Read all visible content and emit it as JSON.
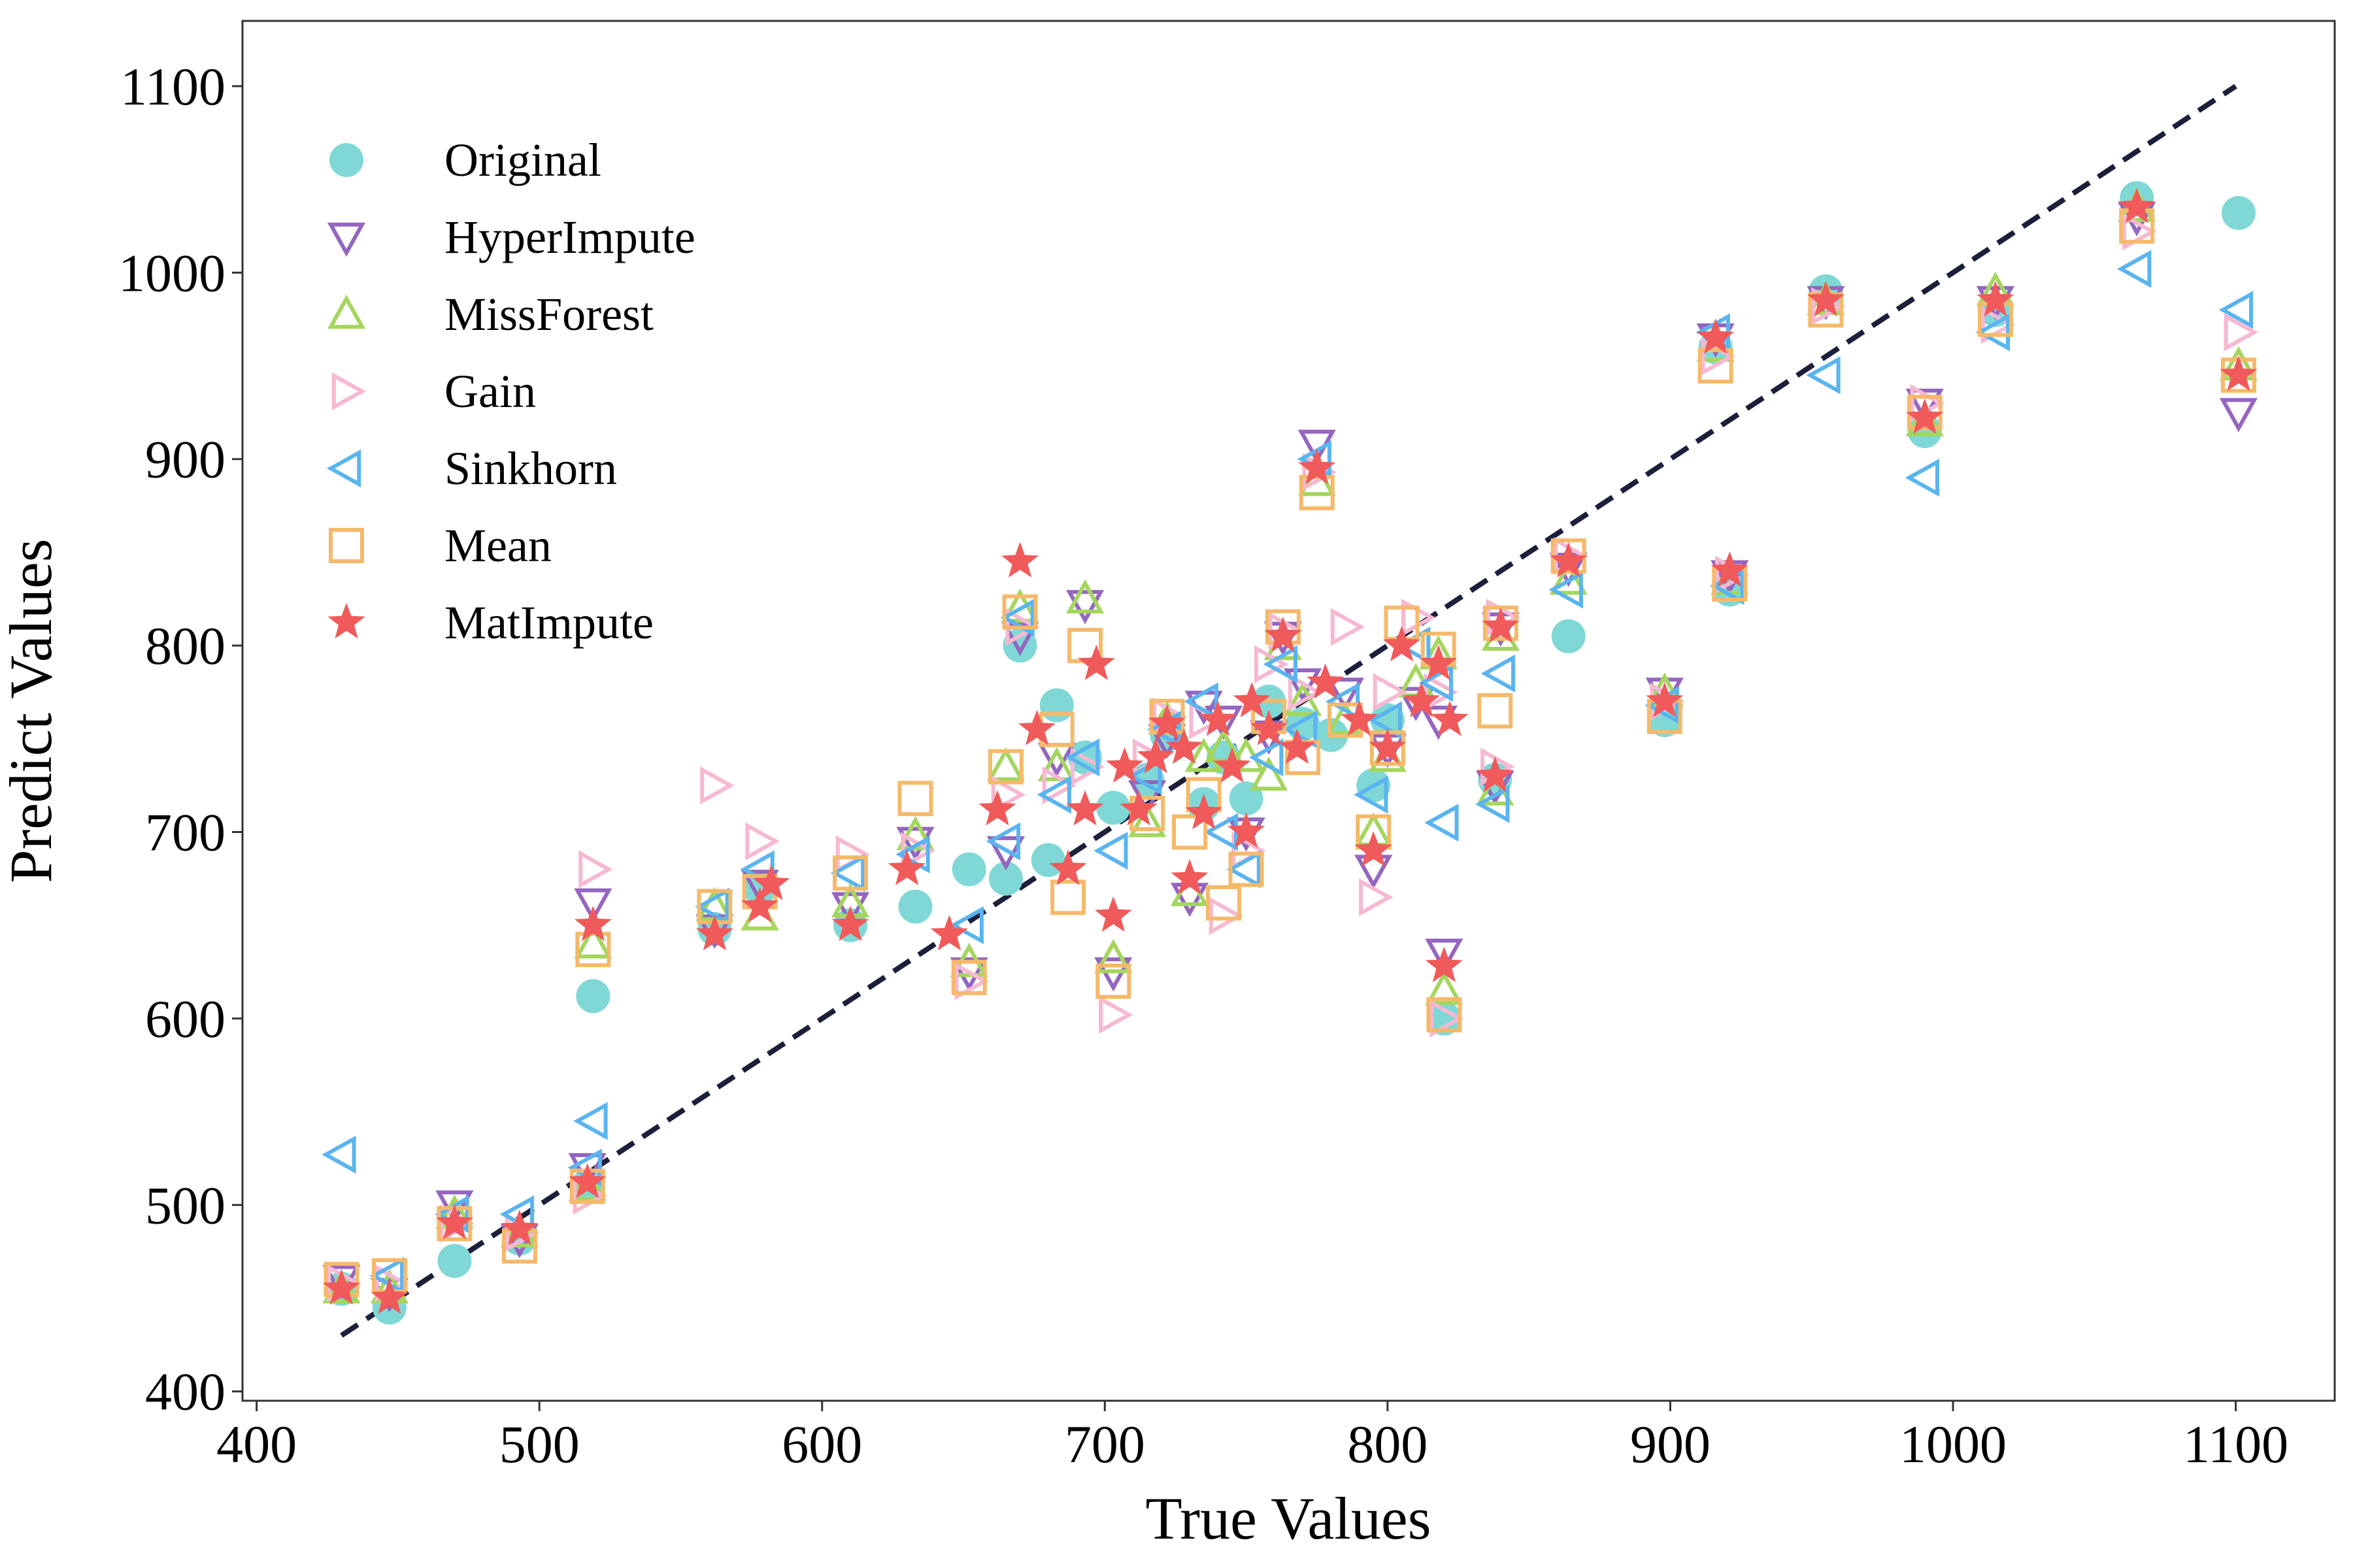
{
  "chart_data": {
    "type": "scatter",
    "xlabel": "True Values",
    "ylabel": "Predict Values",
    "xlim": [
      395,
      1135
    ],
    "ylim": [
      395,
      1135
    ],
    "xticks": [
      400,
      500,
      600,
      700,
      800,
      900,
      1000,
      1100
    ],
    "yticks": [
      400,
      500,
      600,
      700,
      800,
      900,
      1000,
      1100
    ],
    "grid": false,
    "legend_position": "top-left",
    "reference_line": {
      "style": "dashed",
      "color": "#1b1f3a",
      "points": [
        [
          430,
          430
        ],
        [
          1100,
          1100
        ]
      ]
    },
    "series": [
      {
        "name": "Original",
        "marker": "circle",
        "color": "#7fd8d6",
        "filled": true,
        "points": [
          [
            430,
            455
          ],
          [
            447,
            445
          ],
          [
            470,
            470
          ],
          [
            493,
            482
          ],
          [
            517,
            510
          ],
          [
            519,
            612
          ],
          [
            562,
            648
          ],
          [
            578,
            670
          ],
          [
            610,
            650
          ],
          [
            633,
            660
          ],
          [
            652,
            680
          ],
          [
            665,
            675
          ],
          [
            670,
            800
          ],
          [
            680,
            685
          ],
          [
            683,
            768
          ],
          [
            693,
            740
          ],
          [
            703,
            713
          ],
          [
            715,
            728
          ],
          [
            722,
            752
          ],
          [
            735,
            715
          ],
          [
            742,
            740
          ],
          [
            750,
            718
          ],
          [
            758,
            770
          ],
          [
            770,
            758
          ],
          [
            780,
            752
          ],
          [
            795,
            725
          ],
          [
            800,
            760
          ],
          [
            820,
            600
          ],
          [
            838,
            728
          ],
          [
            864,
            805
          ],
          [
            898,
            760
          ],
          [
            916,
            960
          ],
          [
            921,
            830
          ],
          [
            955,
            990
          ],
          [
            990,
            915
          ],
          [
            1015,
            980
          ],
          [
            1065,
            1040
          ],
          [
            1101,
            1032
          ]
        ]
      },
      {
        "name": "HyperImpute",
        "marker": "triangle-down",
        "color": "#9466c0",
        "filled": false,
        "points": [
          [
            430,
            460
          ],
          [
            447,
            453
          ],
          [
            470,
            500
          ],
          [
            493,
            482
          ],
          [
            517,
            520
          ],
          [
            519,
            662
          ],
          [
            562,
            648
          ],
          [
            578,
            672
          ],
          [
            610,
            660
          ],
          [
            633,
            695
          ],
          [
            652,
            625
          ],
          [
            665,
            690
          ],
          [
            670,
            805
          ],
          [
            683,
            740
          ],
          [
            693,
            822
          ],
          [
            703,
            625
          ],
          [
            715,
            720
          ],
          [
            722,
            750
          ],
          [
            730,
            665
          ],
          [
            735,
            768
          ],
          [
            742,
            760
          ],
          [
            750,
            700
          ],
          [
            758,
            752
          ],
          [
            763,
            805
          ],
          [
            770,
            780
          ],
          [
            775,
            908
          ],
          [
            785,
            775
          ],
          [
            795,
            680
          ],
          [
            800,
            745
          ],
          [
            810,
            770
          ],
          [
            818,
            760
          ],
          [
            820,
            635
          ],
          [
            838,
            725
          ],
          [
            840,
            810
          ],
          [
            864,
            842
          ],
          [
            898,
            775
          ],
          [
            916,
            965
          ],
          [
            921,
            838
          ],
          [
            955,
            985
          ],
          [
            990,
            930
          ],
          [
            1015,
            985
          ],
          [
            1065,
            1030
          ],
          [
            1101,
            925
          ]
        ]
      },
      {
        "name": "MissForest",
        "marker": "triangle-up",
        "color": "#a4d65e",
        "filled": false,
        "points": [
          [
            430,
            455
          ],
          [
            447,
            455
          ],
          [
            470,
            495
          ],
          [
            493,
            485
          ],
          [
            517,
            510
          ],
          [
            519,
            640
          ],
          [
            562,
            660
          ],
          [
            578,
            655
          ],
          [
            610,
            662
          ],
          [
            633,
            698
          ],
          [
            652,
            630
          ],
          [
            665,
            735
          ],
          [
            670,
            820
          ],
          [
            683,
            735
          ],
          [
            693,
            825
          ],
          [
            703,
            632
          ],
          [
            715,
            705
          ],
          [
            722,
            760
          ],
          [
            730,
            668
          ],
          [
            735,
            740
          ],
          [
            742,
            745
          ],
          [
            750,
            740
          ],
          [
            758,
            730
          ],
          [
            763,
            800
          ],
          [
            770,
            770
          ],
          [
            775,
            888
          ],
          [
            785,
            760
          ],
          [
            795,
            700
          ],
          [
            800,
            740
          ],
          [
            810,
            780
          ],
          [
            818,
            795
          ],
          [
            820,
            615
          ],
          [
            838,
            722
          ],
          [
            840,
            805
          ],
          [
            864,
            835
          ],
          [
            898,
            775
          ],
          [
            916,
            960
          ],
          [
            921,
            835
          ],
          [
            955,
            985
          ],
          [
            990,
            920
          ],
          [
            1015,
            990
          ],
          [
            1065,
            1035
          ],
          [
            1101,
            950
          ]
        ]
      },
      {
        "name": "Gain",
        "marker": "triangle-right",
        "color": "#f7b8d2",
        "filled": false,
        "points": [
          [
            430,
            458
          ],
          [
            447,
            458
          ],
          [
            470,
            490
          ],
          [
            493,
            485
          ],
          [
            517,
            505
          ],
          [
            519,
            680
          ],
          [
            562,
            725
          ],
          [
            578,
            695
          ],
          [
            610,
            688
          ],
          [
            633,
            690
          ],
          [
            652,
            620
          ],
          [
            665,
            720
          ],
          [
            670,
            810
          ],
          [
            683,
            725
          ],
          [
            693,
            735
          ],
          [
            703,
            602
          ],
          [
            715,
            740
          ],
          [
            722,
            762
          ],
          [
            735,
            760
          ],
          [
            742,
            655
          ],
          [
            750,
            690
          ],
          [
            758,
            790
          ],
          [
            763,
            808
          ],
          [
            770,
            775
          ],
          [
            775,
            893
          ],
          [
            785,
            810
          ],
          [
            795,
            665
          ],
          [
            800,
            775
          ],
          [
            810,
            815
          ],
          [
            818,
            775
          ],
          [
            820,
            600
          ],
          [
            838,
            735
          ],
          [
            840,
            815
          ],
          [
            864,
            848
          ],
          [
            898,
            770
          ],
          [
            916,
            955
          ],
          [
            921,
            838
          ],
          [
            955,
            982
          ],
          [
            990,
            930
          ],
          [
            1015,
            972
          ],
          [
            1065,
            1022
          ],
          [
            1101,
            968
          ]
        ]
      },
      {
        "name": "Sinkhorn",
        "marker": "triangle-left",
        "color": "#5ab4f0",
        "filled": false,
        "points": [
          [
            430,
            527
          ],
          [
            447,
            462
          ],
          [
            470,
            495
          ],
          [
            493,
            495
          ],
          [
            517,
            520
          ],
          [
            519,
            545
          ],
          [
            562,
            660
          ],
          [
            578,
            680
          ],
          [
            610,
            678
          ],
          [
            633,
            688
          ],
          [
            652,
            650
          ],
          [
            665,
            695
          ],
          [
            670,
            815
          ],
          [
            683,
            720
          ],
          [
            693,
            740
          ],
          [
            703,
            690
          ],
          [
            715,
            730
          ],
          [
            722,
            755
          ],
          [
            735,
            770
          ],
          [
            742,
            700
          ],
          [
            750,
            680
          ],
          [
            758,
            740
          ],
          [
            763,
            790
          ],
          [
            770,
            755
          ],
          [
            775,
            900
          ],
          [
            785,
            770
          ],
          [
            795,
            720
          ],
          [
            800,
            760
          ],
          [
            810,
            800
          ],
          [
            818,
            780
          ],
          [
            820,
            705
          ],
          [
            838,
            715
          ],
          [
            840,
            785
          ],
          [
            864,
            830
          ],
          [
            898,
            768
          ],
          [
            916,
            968
          ],
          [
            921,
            832
          ],
          [
            955,
            945
          ],
          [
            990,
            890
          ],
          [
            1015,
            968
          ],
          [
            1065,
            1002
          ],
          [
            1101,
            980
          ]
        ]
      },
      {
        "name": "Mean",
        "marker": "square",
        "color": "#f5b96b",
        "filled": false,
        "points": [
          [
            430,
            460
          ],
          [
            447,
            462
          ],
          [
            470,
            490
          ],
          [
            493,
            478
          ],
          [
            517,
            510
          ],
          [
            519,
            637
          ],
          [
            562,
            660
          ],
          [
            578,
            668
          ],
          [
            610,
            678
          ],
          [
            633,
            718
          ],
          [
            652,
            622
          ],
          [
            665,
            735
          ],
          [
            670,
            818
          ],
          [
            683,
            755
          ],
          [
            687,
            665
          ],
          [
            693,
            800
          ],
          [
            703,
            620
          ],
          [
            715,
            710
          ],
          [
            722,
            762
          ],
          [
            730,
            700
          ],
          [
            735,
            720
          ],
          [
            742,
            662
          ],
          [
            750,
            680
          ],
          [
            758,
            762
          ],
          [
            763,
            810
          ],
          [
            770,
            740
          ],
          [
            775,
            882
          ],
          [
            785,
            760
          ],
          [
            795,
            700
          ],
          [
            800,
            745
          ],
          [
            805,
            812
          ],
          [
            818,
            798
          ],
          [
            820,
            602
          ],
          [
            838,
            765
          ],
          [
            840,
            812
          ],
          [
            864,
            848
          ],
          [
            898,
            762
          ],
          [
            916,
            950
          ],
          [
            921,
            833
          ],
          [
            955,
            980
          ],
          [
            990,
            925
          ],
          [
            1015,
            975
          ],
          [
            1065,
            1025
          ],
          [
            1101,
            945
          ]
        ]
      },
      {
        "name": "MatImpute",
        "marker": "star",
        "color": "#f05a5a",
        "filled": true,
        "points": [
          [
            430,
            455
          ],
          [
            447,
            450
          ],
          [
            470,
            490
          ],
          [
            493,
            487
          ],
          [
            517,
            512
          ],
          [
            519,
            650
          ],
          [
            562,
            645
          ],
          [
            578,
            660
          ],
          [
            582,
            672
          ],
          [
            610,
            650
          ],
          [
            630,
            680
          ],
          [
            645,
            645
          ],
          [
            662,
            712
          ],
          [
            670,
            845
          ],
          [
            676,
            755
          ],
          [
            687,
            680
          ],
          [
            693,
            712
          ],
          [
            697,
            790
          ],
          [
            703,
            655
          ],
          [
            707,
            735
          ],
          [
            712,
            712
          ],
          [
            718,
            740
          ],
          [
            722,
            758
          ],
          [
            728,
            745
          ],
          [
            730,
            675
          ],
          [
            735,
            710
          ],
          [
            740,
            760
          ],
          [
            745,
            735
          ],
          [
            750,
            700
          ],
          [
            752,
            770
          ],
          [
            758,
            755
          ],
          [
            763,
            805
          ],
          [
            768,
            745
          ],
          [
            775,
            895
          ],
          [
            778,
            780
          ],
          [
            790,
            760
          ],
          [
            795,
            690
          ],
          [
            800,
            745
          ],
          [
            805,
            800
          ],
          [
            812,
            770
          ],
          [
            818,
            790
          ],
          [
            820,
            628
          ],
          [
            822,
            760
          ],
          [
            838,
            730
          ],
          [
            840,
            810
          ],
          [
            864,
            845
          ],
          [
            898,
            770
          ],
          [
            916,
            965
          ],
          [
            921,
            840
          ],
          [
            955,
            985
          ],
          [
            990,
            922
          ],
          [
            1015,
            985
          ],
          [
            1065,
            1035
          ],
          [
            1101,
            945
          ]
        ]
      }
    ]
  }
}
